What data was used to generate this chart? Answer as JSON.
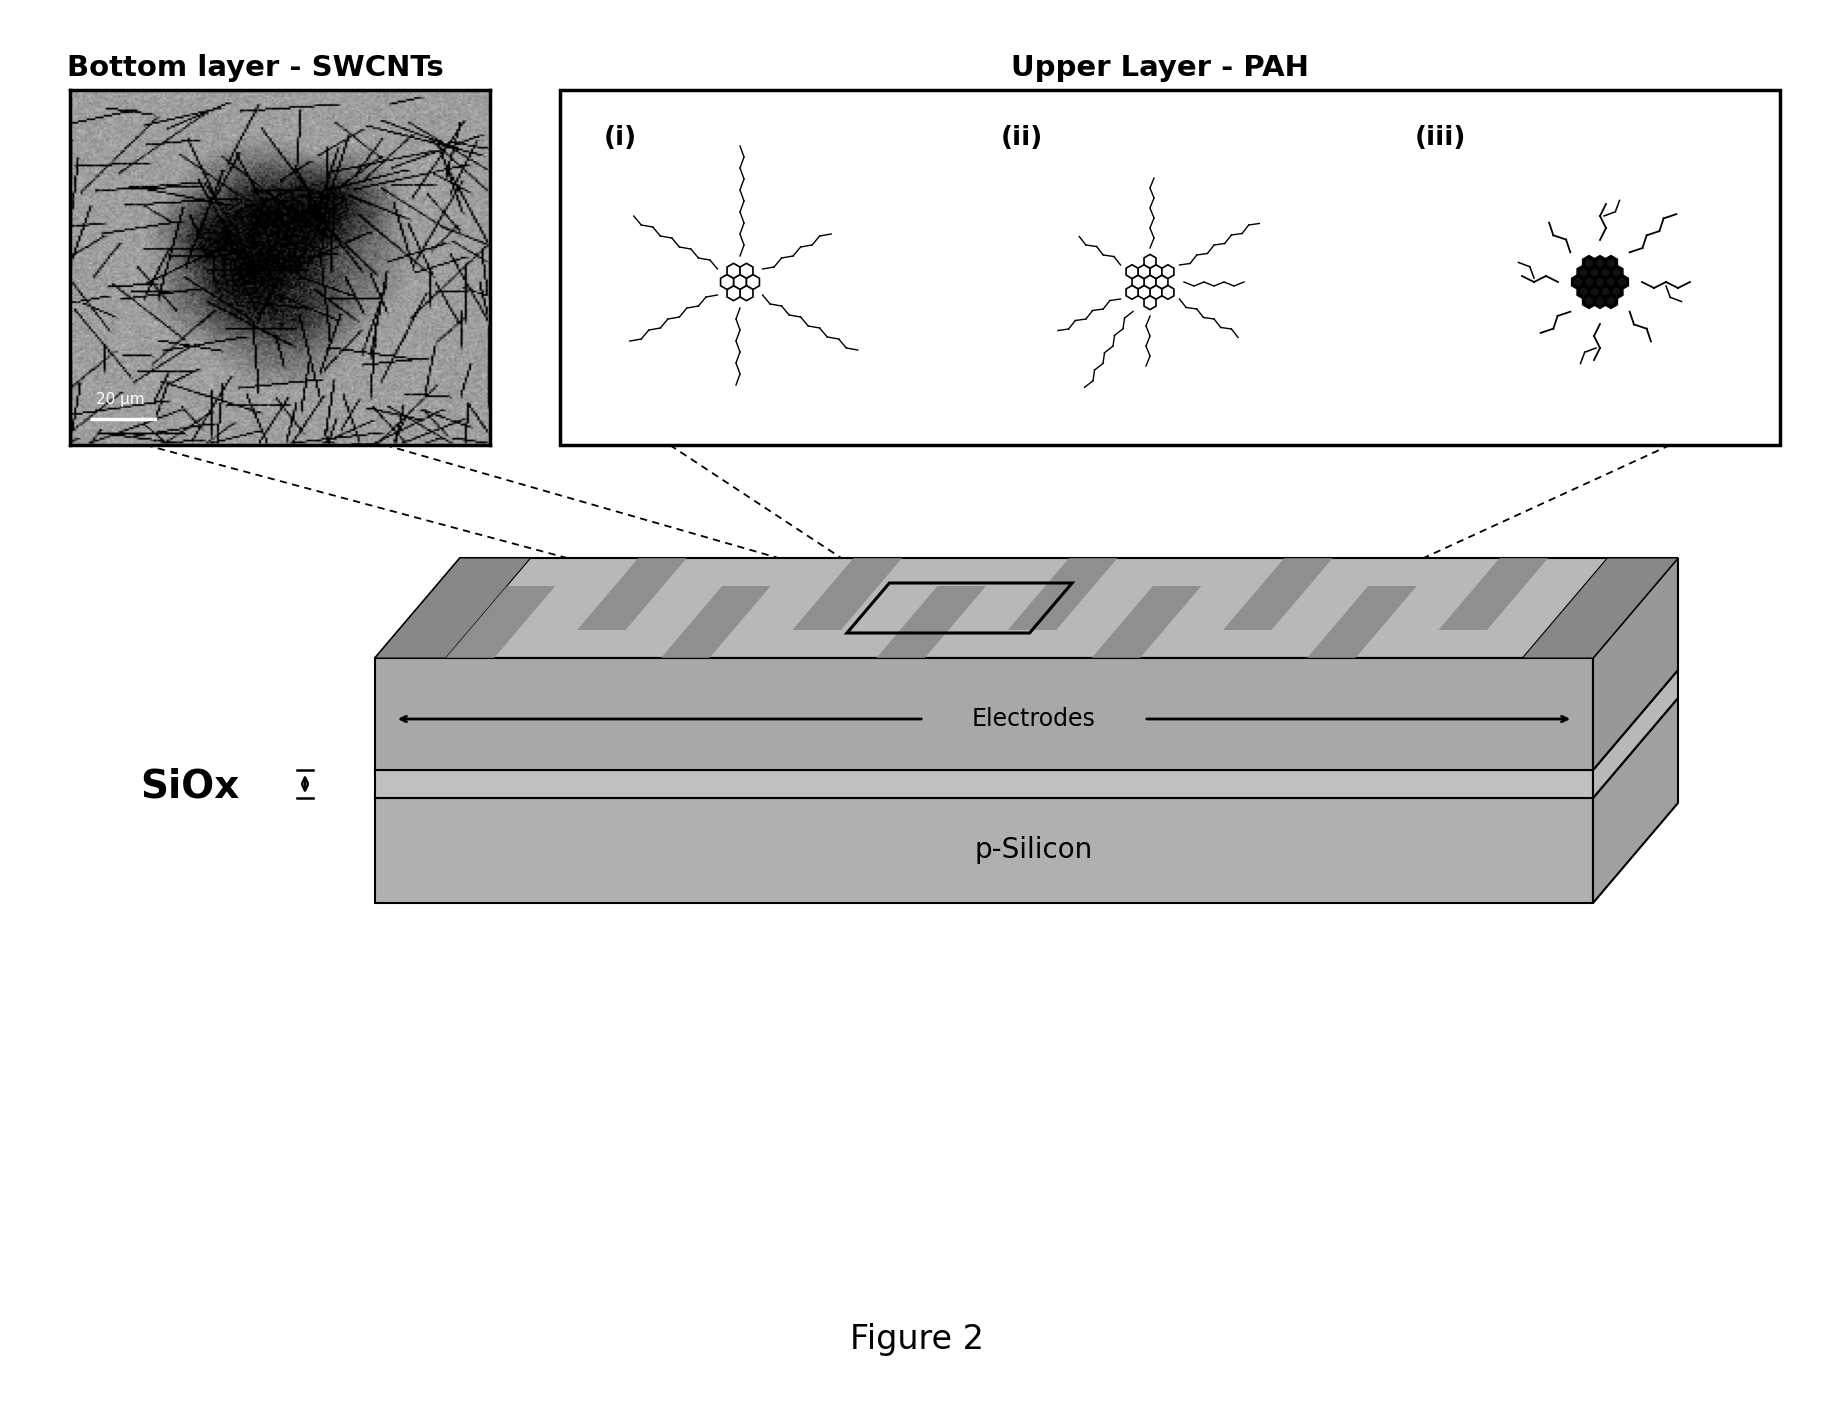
{
  "title": "Figure 2",
  "bottom_layer_label": "Bottom layer - SWCNTs",
  "upper_layer_label": "Upper Layer - PAH",
  "scale_bar_text": "20 μm",
  "siox_label": "SiOx",
  "electrodes_label": "Electrodes",
  "psilicon_label": "p-Silicon",
  "panel_labels": [
    "(i)",
    "(ii)",
    "(iii)"
  ],
  "bg_color": "#ffffff",
  "si_top_color": "#c8c8c8",
  "si_front_color": "#b0b0b0",
  "si_right_color": "#a0a0a0",
  "siox_top_color": "#d8d8d8",
  "siox_front_color": "#c0c0c0",
  "siox_right_color": "#b8b8b8",
  "elec_top_color": "#b8b8b8",
  "elec_front_color": "#a8a8a8",
  "elec_right_color": "#989898",
  "stripe_dark": "#888888",
  "stripe_light": "#c0c0c0",
  "bus_color": "#909090"
}
